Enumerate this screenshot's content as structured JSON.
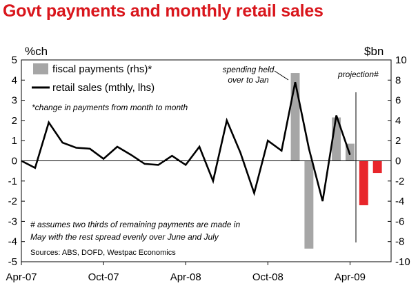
{
  "chart_data": {
    "type": "bar+line",
    "title": "Govt payments and monthly retail sales",
    "left_axis": {
      "unit": "%ch",
      "ylim": [
        -5,
        5
      ],
      "ticks": [
        "5",
        "4",
        "3",
        "2",
        "1",
        "0",
        "-1",
        "-2",
        "-3",
        "-4",
        "-5"
      ]
    },
    "right_axis": {
      "unit": "$bn",
      "ylim": [
        -10,
        10
      ],
      "ticks": [
        "10",
        "8",
        "6",
        "4",
        "2",
        "0",
        "-2",
        "-4",
        "-6",
        "-8",
        "-10"
      ]
    },
    "x_tick_labels": [
      "Apr-07",
      "Oct-07",
      "Apr-08",
      "Oct-08",
      "Apr-09"
    ],
    "legend": {
      "bar_label": "fiscal payments (rhs)*",
      "line_label": "retail sales (mthly, lhs)",
      "note": "*change in payments from month to month"
    },
    "series": [
      {
        "name": "retail sales (mthly, lhs)",
        "kind": "line",
        "axis": "left",
        "x": [
          "2007-04",
          "2007-05",
          "2007-06",
          "2007-07",
          "2007-08",
          "2007-09",
          "2007-10",
          "2007-11",
          "2007-12",
          "2008-01",
          "2008-02",
          "2008-03",
          "2008-04",
          "2008-05",
          "2008-06",
          "2008-07",
          "2008-08",
          "2008-09",
          "2008-10",
          "2008-11",
          "2008-12",
          "2009-01",
          "2009-02",
          "2009-03",
          "2009-04"
        ],
        "values": [
          0.0,
          -0.35,
          1.9,
          0.9,
          0.65,
          0.6,
          0.1,
          0.7,
          0.3,
          -0.15,
          -0.2,
          0.25,
          -0.2,
          0.7,
          -1.0,
          2.0,
          0.4,
          -1.6,
          1.0,
          0.5,
          3.9,
          0.6,
          -2.0,
          2.25,
          0.3
        ]
      },
      {
        "name": "fiscal payments (rhs)",
        "kind": "bar",
        "axis": "right",
        "x": [
          "2008-12",
          "2009-01",
          "2009-03",
          "2009-04"
        ],
        "values": [
          8.7,
          -8.7,
          4.3,
          1.7
        ],
        "color": "#a6a6a6"
      },
      {
        "name": "projection#",
        "kind": "bar",
        "axis": "right",
        "x": [
          "2009-05",
          "2009-06"
        ],
        "values": [
          -4.4,
          -1.2
        ],
        "color": "#e8262b"
      }
    ],
    "annotations": {
      "spending": [
        "spending held",
        "over to Jan"
      ],
      "projection": "projection#",
      "footnote": [
        "# assumes two thirds of remaining payments are made in",
        "May with the rest spread evenly over June and July"
      ],
      "source": "Sources: ABS, DOFD, Westpac Economics"
    }
  },
  "colors": {
    "title": "#d9161c",
    "bar_fiscal": "#a6a6a6",
    "bar_projection": "#e8262b",
    "line": "#000000"
  }
}
